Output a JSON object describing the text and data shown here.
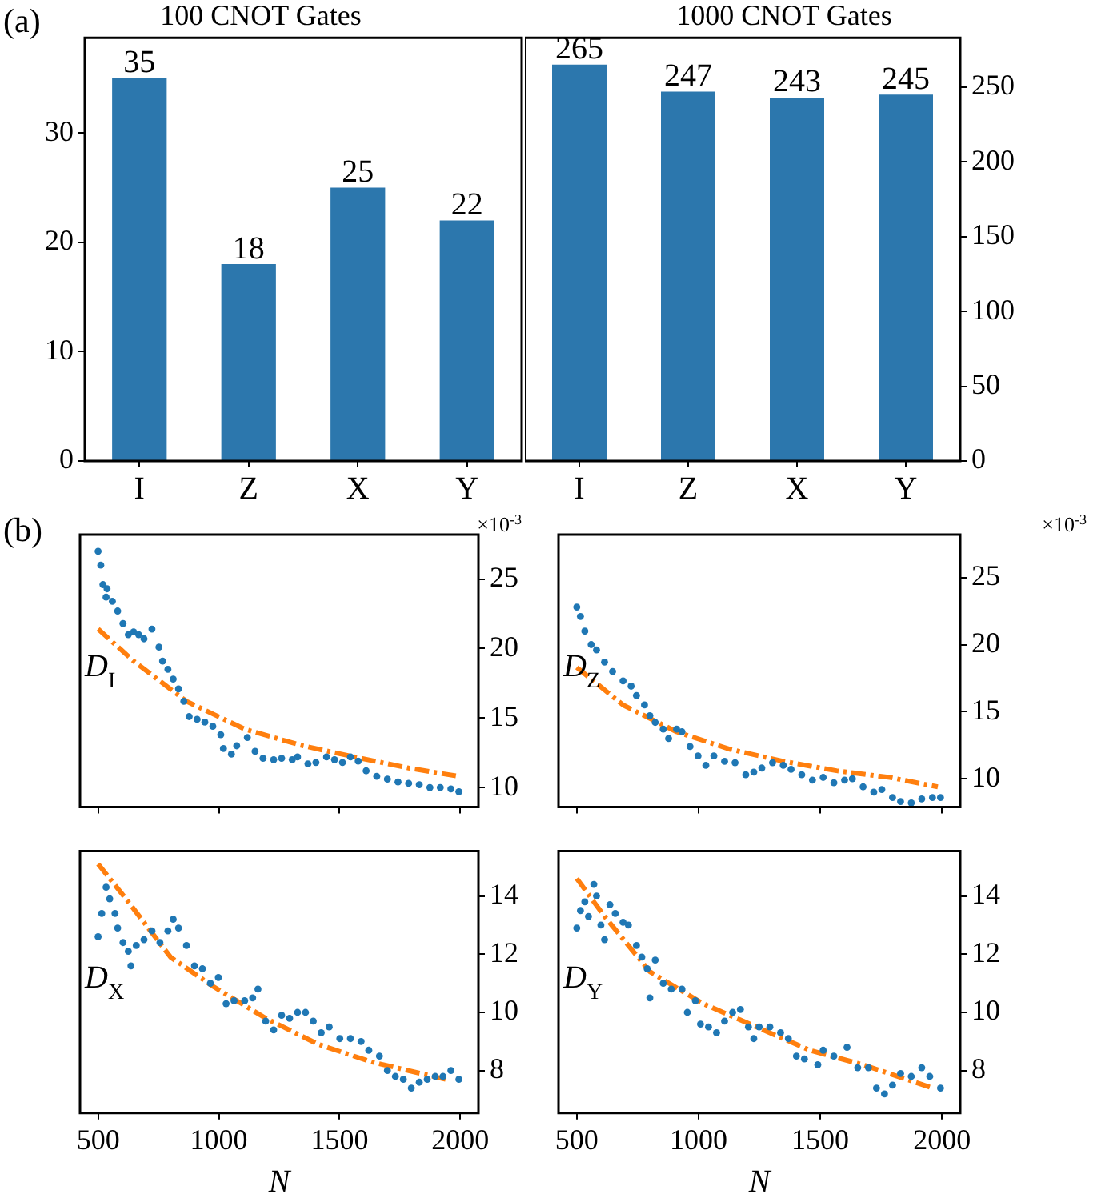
{
  "chart_data": [
    {
      "type": "bar",
      "title": "100 CNOT Gates",
      "categories": [
        "I",
        "Z",
        "X",
        "Y"
      ],
      "values": [
        35,
        18,
        25,
        22
      ],
      "color": "#2c77ad",
      "ylim": [
        0,
        38.7
      ],
      "yticks": [
        0,
        10,
        20,
        30
      ],
      "data_labels": true,
      "grid": false,
      "legend": false,
      "annotations": [
        "(a)"
      ]
    },
    {
      "type": "bar",
      "title": "1000 CNOT Gates",
      "categories": [
        "I",
        "Z",
        "X",
        "Y"
      ],
      "series": [
        {
          "values": [
            265,
            247,
            243,
            245
          ],
          "color": "#2c77ad",
          "axis": "y2"
        }
      ],
      "y2lim": [
        0,
        283
      ],
      "y2ticks": [
        0,
        50,
        100,
        150,
        200,
        250
      ],
      "data_labels": true,
      "grid": false,
      "legend": false
    },
    {
      "type": "scatter",
      "xlim": [
        425,
        2075
      ],
      "xticks": [
        500,
        1000,
        1500,
        2000
      ],
      "y2lim": [
        8.6,
        28.2
      ],
      "y2ticks": [
        10,
        15,
        20,
        25
      ],
      "tick_labels": "y",
      "marker": "circle",
      "grid": false,
      "legend": false,
      "annotations": [
        "(b)",
        "D$_{I}$",
        "×10$^{-3}$"
      ],
      "series": [
        {
          "color": "#1f77b4",
          "axis": "y2",
          "x": [
            500,
            511,
            520,
            533,
            537,
            559,
            581,
            603,
            625,
            647,
            668,
            690,
            723,
            752,
            767,
            789,
            811,
            833,
            855,
            877,
            910,
            942,
            975,
            1008,
            1019,
            1052,
            1074,
            1118,
            1150,
            1183,
            1227,
            1260,
            1304,
            1326,
            1369,
            1402,
            1446,
            1479,
            1512,
            1545,
            1577,
            1610,
            1654,
            1698,
            1742,
            1786,
            1830,
            1874,
            1917,
            1961,
            1994
          ],
          "values": [
            27.0,
            26.0,
            24.6,
            23.7,
            24.3,
            23.4,
            22.7,
            21.8,
            21.0,
            21.2,
            21.0,
            20.7,
            21.4,
            20.1,
            19.1,
            18.5,
            17.8,
            17.1,
            16.2,
            15.1,
            14.9,
            14.7,
            14.4,
            13.8,
            12.8,
            12.4,
            13.0,
            13.6,
            12.6,
            12.1,
            12.0,
            12.1,
            12.0,
            12.2,
            11.7,
            11.8,
            12.2,
            12.0,
            11.8,
            12.2,
            11.9,
            11.2,
            10.8,
            10.6,
            10.4,
            10.3,
            10.2,
            10.0,
            10.0,
            9.9,
            9.7
          ]
        },
        {
          "type": "line",
          "color": "#ff7f0e",
          "axis": "y2",
          "line_style": "dashed",
          "marker": "none",
          "x": [
            500,
            647,
            866,
            1107,
            1348,
            1589,
            1786,
            1994
          ],
          "values": [
            21.4,
            19.1,
            16.2,
            14.2,
            13.0,
            12.1,
            11.4,
            10.8
          ]
        }
      ]
    },
    {
      "type": "scatter",
      "xlim": [
        425,
        2075
      ],
      "xticks": [
        500,
        1000,
        1500,
        2000
      ],
      "y2lim": [
        7.9,
        28.2
      ],
      "y2ticks": [
        10,
        15,
        20,
        25
      ],
      "tick_labels": "y",
      "marker": "circle",
      "grid": false,
      "legend": false,
      "annotations": [
        "D$_{Z}$",
        "×10$^{-3}$"
      ],
      "series": [
        {
          "color": "#1f77b4",
          "axis": "y2",
          "x": [
            500,
            515,
            533,
            559,
            581,
            614,
            647,
            690,
            723,
            745,
            778,
            800,
            822,
            855,
            877,
            910,
            932,
            965,
            998,
            1030,
            1063,
            1107,
            1150,
            1194,
            1227,
            1260,
            1304,
            1348,
            1380,
            1424,
            1468,
            1512,
            1556,
            1600,
            1632,
            1676,
            1720,
            1753,
            1797,
            1830,
            1874,
            1917,
            1961,
            1994
          ],
          "values": [
            22.8,
            22.1,
            21.0,
            20.0,
            19.6,
            18.7,
            18.0,
            17.3,
            16.9,
            16.2,
            15.5,
            14.7,
            14.2,
            13.7,
            13.0,
            13.7,
            13.5,
            12.4,
            11.7,
            11.0,
            11.7,
            11.3,
            11.2,
            10.3,
            10.5,
            10.8,
            11.2,
            11.0,
            10.7,
            10.3,
            9.9,
            10.1,
            9.7,
            9.9,
            10.0,
            9.4,
            9.0,
            9.2,
            8.6,
            8.3,
            8.2,
            8.5,
            8.6,
            8.6
          ]
        },
        {
          "type": "line",
          "color": "#ff7f0e",
          "axis": "y2",
          "line_style": "dashed",
          "marker": "none",
          "x": [
            500,
            690,
            910,
            1129,
            1348,
            1567,
            1786,
            1983
          ],
          "values": [
            18.3,
            15.5,
            13.5,
            12.2,
            11.3,
            10.6,
            10.1,
            9.4
          ]
        }
      ]
    },
    {
      "type": "scatter",
      "xlabel": "N",
      "xlim": [
        425,
        2075
      ],
      "xticks": [
        500,
        1000,
        1500,
        2000
      ],
      "y2lim": [
        6.54,
        15.54
      ],
      "y2ticks": [
        8,
        10,
        12,
        14
      ],
      "marker": "circle",
      "grid": false,
      "legend": false,
      "annotations": [
        "D$_{X}$"
      ],
      "series": [
        {
          "color": "#1f77b4",
          "axis": "y2",
          "x": [
            500,
            515,
            533,
            548,
            570,
            581,
            603,
            625,
            636,
            658,
            690,
            723,
            756,
            789,
            811,
            833,
            866,
            899,
            932,
            965,
            998,
            1030,
            1063,
            1107,
            1140,
            1162,
            1194,
            1227,
            1260,
            1293,
            1326,
            1359,
            1391,
            1424,
            1457,
            1501,
            1545,
            1589,
            1621,
            1665,
            1698,
            1731,
            1764,
            1797,
            1830,
            1863,
            1896,
            1928,
            1961,
            1994
          ],
          "values": [
            12.6,
            13.4,
            14.3,
            13.9,
            13.4,
            12.9,
            12.4,
            12.1,
            11.6,
            12.3,
            12.5,
            12.8,
            12.4,
            12.8,
            13.2,
            12.9,
            12.3,
            11.6,
            11.5,
            11.0,
            11.2,
            10.3,
            10.4,
            10.4,
            10.5,
            10.8,
            9.7,
            9.4,
            9.9,
            9.8,
            10.0,
            10.0,
            9.7,
            9.3,
            9.5,
            9.1,
            9.1,
            9.0,
            8.7,
            8.5,
            8.0,
            7.8,
            7.7,
            7.4,
            7.6,
            7.7,
            7.8,
            7.8,
            8.0,
            7.7
          ]
        },
        {
          "type": "line",
          "color": "#ff7f0e",
          "axis": "y2",
          "line_style": "dashed",
          "marker": "none",
          "x": [
            500,
            625,
            800,
            975,
            1194,
            1413,
            1632,
            1939
          ],
          "values": [
            15.1,
            13.8,
            11.9,
            10.9,
            9.8,
            8.9,
            8.3,
            7.7
          ]
        }
      ]
    },
    {
      "type": "scatter",
      "xlabel": "N",
      "xlim": [
        425,
        2075
      ],
      "xticks": [
        500,
        1000,
        1500,
        2000
      ],
      "y2lim": [
        6.54,
        15.54
      ],
      "y2ticks": [
        8,
        10,
        12,
        14
      ],
      "marker": "circle",
      "grid": false,
      "legend": false,
      "annotations": [
        "D$_{Y}$"
      ],
      "series": [
        {
          "color": "#1f77b4",
          "axis": "y2",
          "x": [
            500,
            515,
            533,
            548,
            570,
            581,
            599,
            614,
            636,
            658,
            690,
            712,
            745,
            767,
            789,
            800,
            822,
            855,
            888,
            932,
            954,
            987,
            1008,
            1041,
            1074,
            1107,
            1140,
            1172,
            1205,
            1227,
            1249,
            1293,
            1337,
            1369,
            1402,
            1435,
            1490,
            1512,
            1556,
            1610,
            1654,
            1698,
            1731,
            1764,
            1797,
            1830,
            1874,
            1917,
            1950,
            1994
          ],
          "values": [
            12.9,
            13.5,
            13.8,
            13.3,
            14.4,
            14.0,
            13.0,
            12.5,
            13.7,
            13.4,
            13.1,
            13.0,
            12.3,
            11.9,
            11.5,
            10.5,
            11.8,
            11.0,
            10.8,
            10.8,
            10.0,
            10.4,
            9.6,
            9.5,
            9.3,
            9.7,
            10.0,
            10.1,
            9.5,
            9.1,
            9.5,
            9.5,
            9.3,
            9.1,
            8.5,
            8.4,
            8.2,
            8.7,
            8.5,
            8.8,
            8.1,
            8.1,
            7.4,
            7.2,
            7.5,
            7.9,
            7.8,
            8.1,
            7.8,
            7.4
          ]
        },
        {
          "type": "line",
          "color": "#ff7f0e",
          "axis": "y2",
          "line_style": "dashed",
          "marker": "none",
          "x": [
            500,
            614,
            800,
            1019,
            1238,
            1457,
            1676,
            1961
          ],
          "values": [
            14.6,
            13.3,
            11.4,
            10.3,
            9.5,
            8.7,
            8.2,
            7.4
          ]
        }
      ]
    }
  ]
}
